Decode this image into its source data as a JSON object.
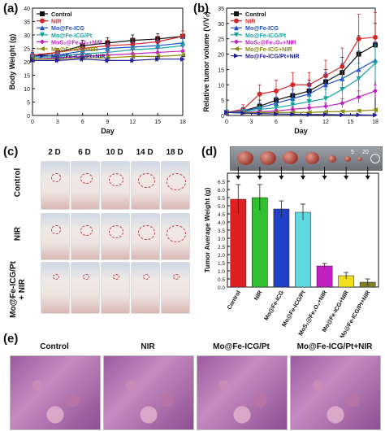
{
  "panels": {
    "a": "(a)",
    "b": "(b)",
    "c": "(c)",
    "d": "(d)",
    "e": "(e)"
  },
  "chart_data": [
    {
      "type": "line",
      "panel": "a",
      "xlabel": "Day",
      "ylabel": "Body Weight (g)",
      "x": [
        0,
        3,
        6,
        9,
        12,
        15,
        18
      ],
      "xticks": [
        "0",
        "3",
        "6",
        "9",
        "12",
        "15",
        "18"
      ],
      "ylim": [
        0,
        40
      ],
      "yticks": [
        "0",
        "5",
        "10",
        "15",
        "20",
        "25",
        "30",
        "35",
        "40"
      ],
      "legend_position": "top-left",
      "series": [
        {
          "name": "Control",
          "color": "#111111",
          "marker": "square",
          "values": [
            22,
            23.5,
            26,
            27,
            28,
            28.5,
            29.5
          ],
          "errors": [
            1.5,
            1.5,
            2,
            2,
            2,
            2,
            2
          ]
        },
        {
          "name": "NIR",
          "color": "#d62728",
          "marker": "circle",
          "values": [
            22.5,
            23.5,
            25,
            26,
            26.5,
            27.5,
            29.5
          ],
          "errors": [
            1.5,
            1.5,
            1.5,
            2,
            2,
            2,
            2
          ]
        },
        {
          "name": "Mo@Fe-ICG",
          "color": "#1f50c8",
          "marker": "triangle",
          "values": [
            22,
            22.5,
            24,
            25,
            25.5,
            26,
            27
          ],
          "errors": [
            1.5,
            1.5,
            1.5,
            1.5,
            2,
            2,
            2
          ]
        },
        {
          "name": "Mo@Fe-ICG/Pt",
          "color": "#17a2a2",
          "marker": "down-triangle",
          "values": [
            21.5,
            22,
            23,
            23.5,
            24.5,
            25,
            26
          ],
          "errors": [
            1.5,
            1.5,
            1.5,
            1.5,
            1.5,
            1.5,
            1.5
          ]
        },
        {
          "name": "MoS₂@Fe₃O₄+NIR",
          "color": "#c020c0",
          "marker": "diamond",
          "values": [
            21,
            21.5,
            22,
            22.5,
            23,
            23.5,
            24
          ],
          "errors": [
            1.5,
            1.5,
            1.5,
            1.5,
            1.5,
            1.5,
            1.5
          ]
        },
        {
          "name": "Mo@Fe-ICG+NIR",
          "color": "#8a8a10",
          "marker": "left-triangle",
          "values": [
            21,
            21,
            21.5,
            21.5,
            22,
            22,
            22.5
          ],
          "errors": [
            1,
            1,
            1,
            1,
            1,
            1,
            1
          ]
        },
        {
          "name": "Mo@Fe-ICG/Pt+NIR",
          "color": "#202090",
          "marker": "right-triangle",
          "values": [
            20.5,
            20.5,
            21,
            20.5,
            20.5,
            21,
            21
          ],
          "errors": [
            1,
            1,
            1,
            1,
            1,
            1,
            1
          ]
        }
      ]
    },
    {
      "type": "line",
      "panel": "b",
      "xlabel": "Day",
      "ylabel": "Relative tumor volume (V/V₀)",
      "x": [
        0,
        2,
        4,
        6,
        8,
        10,
        12,
        14,
        16,
        18
      ],
      "xticks": [
        "0",
        "3",
        "6",
        "9",
        "12",
        "15",
        "18"
      ],
      "xtick_values": [
        0,
        3,
        6,
        9,
        12,
        15,
        18
      ],
      "ylim": [
        0,
        35
      ],
      "yticks": [
        "0",
        "5",
        "10",
        "15",
        "20",
        "25",
        "30",
        "35"
      ],
      "legend_position": "top-left",
      "series": [
        {
          "name": "Control",
          "color": "#111111",
          "marker": "square",
          "values": [
            1,
            1.5,
            3,
            5,
            6.5,
            8,
            11,
            14,
            20,
            23
          ],
          "errors": [
            0.5,
            1,
            2,
            2.5,
            3,
            3.5,
            4,
            5,
            6,
            7
          ]
        },
        {
          "name": "NIR",
          "color": "#d62728",
          "marker": "circle",
          "values": [
            1,
            2,
            7,
            8,
            10,
            10,
            13,
            16,
            25,
            25.5
          ],
          "errors": [
            0.5,
            1.5,
            3,
            3.5,
            4,
            4,
            5,
            6,
            8,
            8
          ]
        },
        {
          "name": "Mo@Fe-ICG",
          "color": "#1f50c8",
          "marker": "triangle",
          "values": [
            1,
            1.5,
            2.5,
            4,
            5.5,
            7,
            10,
            12,
            15,
            18
          ],
          "errors": [
            0.5,
            1,
            1.5,
            2,
            3,
            3.5,
            4,
            5,
            6,
            6
          ]
        },
        {
          "name": "Mo@Fe-ICG/Pt",
          "color": "#17a2a2",
          "marker": "down-triangle",
          "values": [
            1,
            1.2,
            2,
            2.5,
            3.5,
            4.5,
            5.5,
            8.5,
            12,
            17
          ],
          "errors": [
            0.3,
            0.8,
            1,
            1.5,
            2,
            2,
            3,
            4,
            5,
            6
          ]
        },
        {
          "name": "MoS₂@Fe₃O₄+NIR",
          "color": "#c020c0",
          "marker": "diamond",
          "values": [
            1,
            1,
            1.2,
            1.5,
            2,
            2.5,
            3,
            4,
            6,
            8
          ],
          "errors": [
            0.2,
            0.3,
            0.5,
            0.5,
            0.8,
            1,
            1,
            1.5,
            2,
            2
          ]
        },
        {
          "name": "Mo@Fe-ICG+NIR",
          "color": "#8a8a10",
          "marker": "left-triangle",
          "values": [
            1,
            1,
            0.9,
            1,
            1,
            1,
            1.2,
            1.3,
            1.5,
            1.8
          ],
          "errors": [
            0.2,
            0.2,
            0.2,
            0.3,
            0.3,
            0.3,
            0.3,
            0.4,
            0.5,
            0.5
          ]
        },
        {
          "name": "Mo@Fe-ICG/Pt+NIR",
          "color": "#202090",
          "marker": "right-triangle",
          "values": [
            1,
            0.8,
            0.6,
            0.5,
            0.4,
            0.3,
            0.3,
            0.2,
            0.2,
            0.1
          ],
          "errors": [
            0.1,
            0.1,
            0.1,
            0.1,
            0.1,
            0.1,
            0.1,
            0.1,
            0.1,
            0.1
          ]
        }
      ]
    },
    {
      "type": "bar",
      "panel": "d",
      "ylabel": "Tumor Average Weight (g)",
      "categories": [
        "Control",
        "NIR",
        "Mo@Fe-ICG",
        "Mo@Fe-ICG/Pt",
        "MoS₂@Fe₃O₄+NIR",
        "Mo@Fe-ICG+NIR",
        "Mo@Fe-ICG/Pt+NIR"
      ],
      "values": [
        5.4,
        5.5,
        4.8,
        4.6,
        1.3,
        0.7,
        0.3
      ],
      "errors": [
        0.9,
        0.8,
        0.5,
        0.5,
        0.15,
        0.2,
        0.2
      ],
      "colors": [
        "#e02020",
        "#30c030",
        "#2040c8",
        "#60d8e0",
        "#c020c0",
        "#f0e020",
        "#808020"
      ],
      "ylim": [
        0,
        7
      ],
      "yticks": [
        "0.0",
        "0.5",
        "1.0",
        "1.5",
        "2.0",
        "2.5",
        "3.0",
        "3.5",
        "4.0",
        "4.5",
        "5.0",
        "5.5",
        "6.0",
        "6.5"
      ]
    }
  ],
  "panel_c": {
    "days": [
      "2 D",
      "6 D",
      "10 D",
      "14 D",
      "18 D"
    ],
    "rows": [
      "Control",
      "NIR",
      "Mo@Fe-ICG/Pt\n+ NIR"
    ]
  },
  "panel_d_photo": {
    "ruler_labels": [
      "5",
      "20"
    ]
  },
  "panel_e": {
    "labels": [
      "Control",
      "NIR",
      "Mo@Fe-ICG/Pt",
      "Mo@Fe-ICG/Pt+NIR"
    ]
  }
}
